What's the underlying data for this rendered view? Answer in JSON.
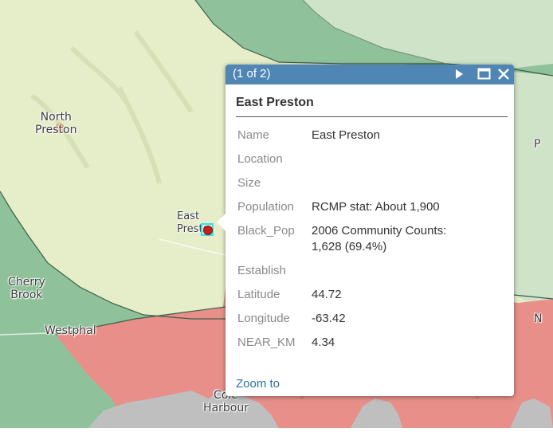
{
  "map": {
    "labels": {
      "north_preston": "North\nPreston",
      "east_preston": "East\nPresto",
      "cherry_brook": "Cherry\nBrook",
      "westphal": "Westphal",
      "cole_harbour": "Cole\nHarbour",
      "edge_p": "P",
      "edge_n": "N"
    },
    "colors": {
      "light_green": "#e6edc9",
      "dark_green": "#8fc29a",
      "pale_green": "#cfe3c8",
      "red": "#e98f89",
      "gray": "#bfbfbf",
      "boundary": "#3b5f4a",
      "marker": "#c0201f",
      "selection": "#33e1f2"
    }
  },
  "popup": {
    "header_bg": "#4f86b4",
    "count": "(1 of 2)",
    "title": "East Preston",
    "fields": [
      {
        "key": "Name",
        "value": "East Preston"
      },
      {
        "key": "Location",
        "value": ""
      },
      {
        "key": "Size",
        "value": ""
      },
      {
        "key": "Population",
        "value": "RCMP stat: About 1,900"
      },
      {
        "key": "Black_Pop",
        "value": "2006 Community Counts:\n1,628 (69.4%)"
      },
      {
        "key": "Establish",
        "value": ""
      },
      {
        "key": "Latitude",
        "value": "44.72"
      },
      {
        "key": "Longitude",
        "value": "-63.42"
      },
      {
        "key": "NEAR_KM",
        "value": "4.34"
      }
    ],
    "zoom_link": "Zoom to",
    "icons": [
      "next-arrow-icon",
      "maximize-icon",
      "close-icon"
    ]
  }
}
